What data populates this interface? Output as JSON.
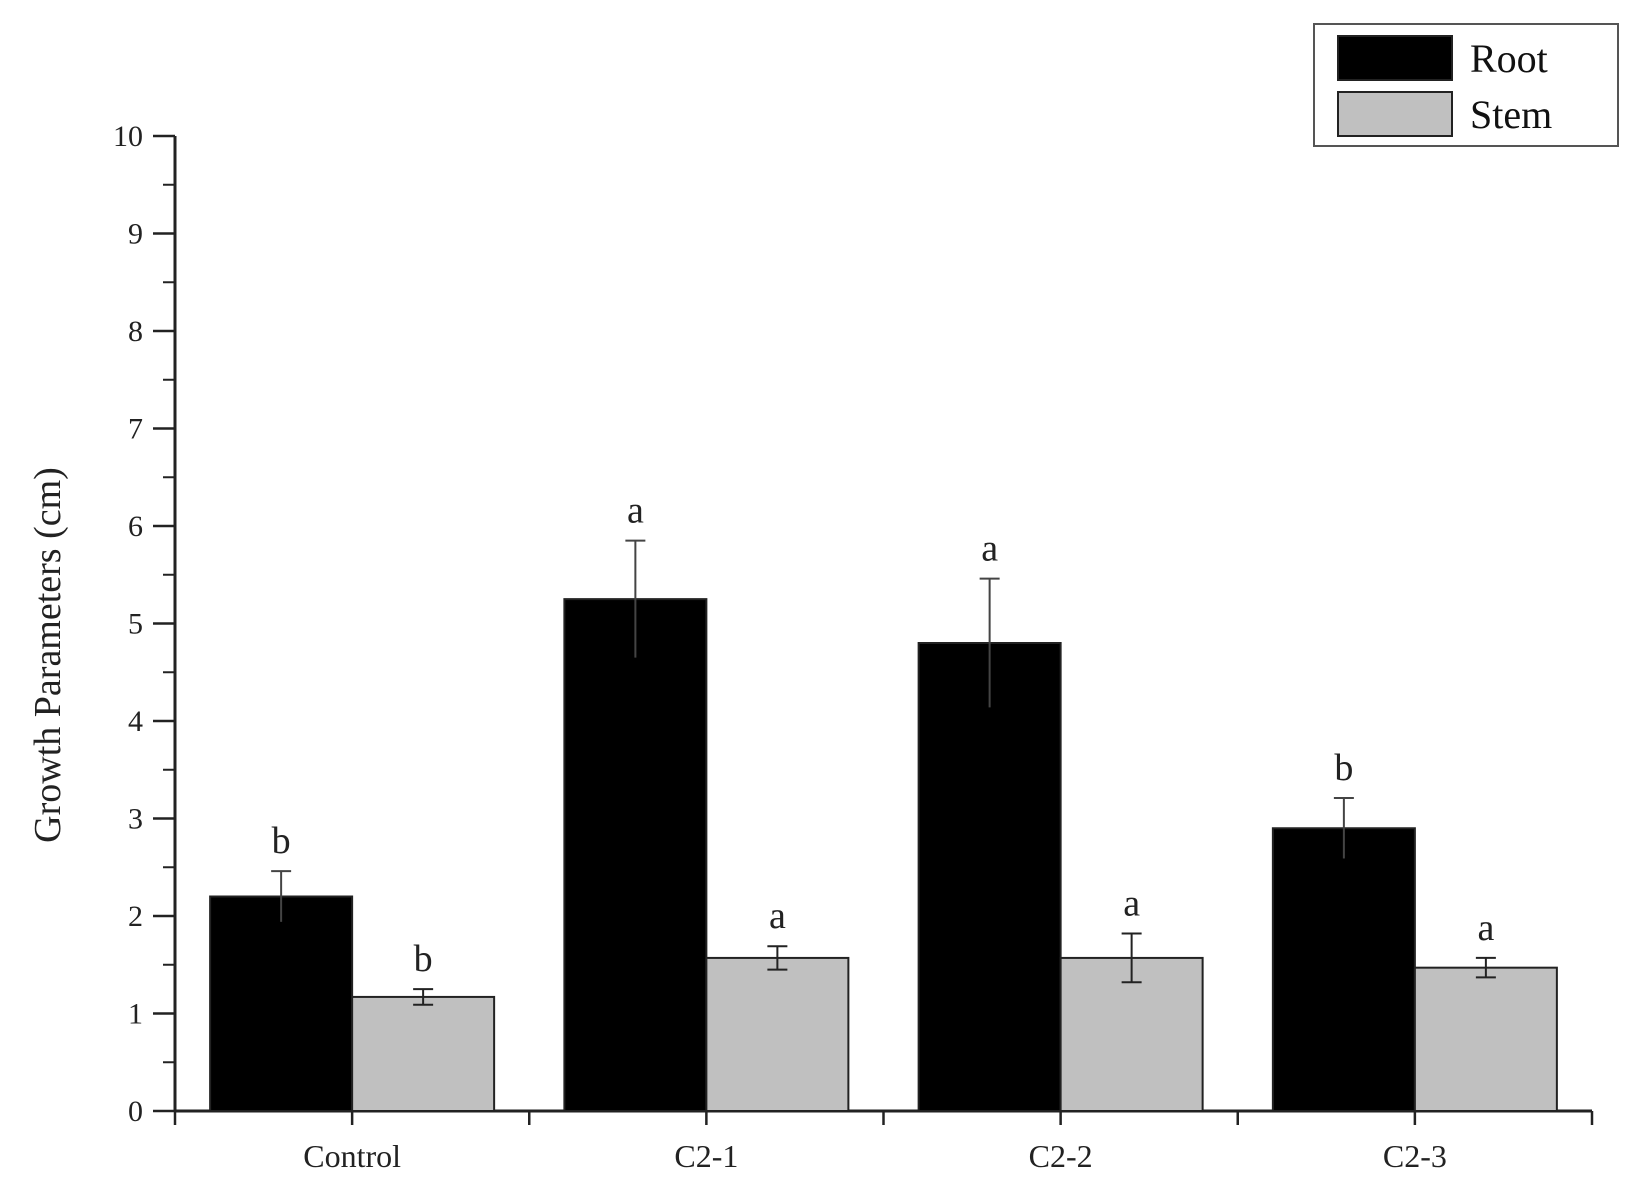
{
  "chart_data": {
    "type": "bar",
    "categories": [
      "Control",
      "C2-1",
      "C2-2",
      "C2-3"
    ],
    "ylabel": "Growth Parameters (cm)",
    "xlabel": "",
    "ylim": [
      0,
      10
    ],
    "yticks": [
      "0",
      "1",
      "2",
      "3",
      "4",
      "5",
      "6",
      "7",
      "8",
      "9",
      "10"
    ],
    "grid": false,
    "legend_position": "top-right",
    "series": [
      {
        "name": "Root",
        "color": "#000000",
        "values": [
          2.2,
          5.25,
          4.8,
          2.9
        ],
        "errors": [
          0.26,
          0.6,
          0.66,
          0.31
        ],
        "sig_labels": [
          "b",
          "a",
          "a",
          "b"
        ]
      },
      {
        "name": "Stem",
        "color": "#c0c0c0",
        "values": [
          1.17,
          1.57,
          1.57,
          1.47
        ],
        "errors": [
          0.08,
          0.12,
          0.25,
          0.1
        ],
        "sig_labels": [
          "b",
          "a",
          "a",
          "a"
        ]
      }
    ]
  }
}
